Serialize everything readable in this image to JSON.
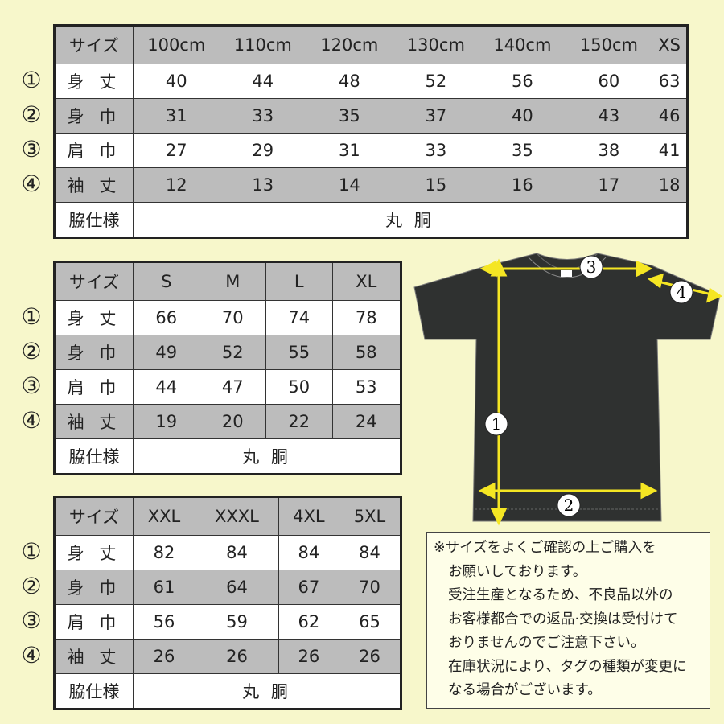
{
  "tables": [
    {
      "header": [
        "サイズ",
        "100cm",
        "110cm",
        "120cm",
        "130cm",
        "140cm",
        "150cm",
        "XS"
      ],
      "rows": [
        {
          "marker": "①",
          "label": "身 丈",
          "values": [
            "40",
            "44",
            "48",
            "52",
            "56",
            "60",
            "63"
          ]
        },
        {
          "marker": "②",
          "label": "身 巾",
          "values": [
            "31",
            "33",
            "35",
            "37",
            "40",
            "43",
            "46"
          ]
        },
        {
          "marker": "③",
          "label": "肩 巾",
          "values": [
            "27",
            "29",
            "31",
            "33",
            "35",
            "38",
            "41"
          ]
        },
        {
          "marker": "④",
          "label": "袖 丈",
          "values": [
            "12",
            "13",
            "14",
            "15",
            "16",
            "17",
            "18"
          ]
        }
      ],
      "side": {
        "label": "脇仕様",
        "value": "丸 胴"
      }
    },
    {
      "header": [
        "サイズ",
        "S",
        "M",
        "L",
        "XL"
      ],
      "rows": [
        {
          "marker": "①",
          "label": "身 丈",
          "values": [
            "66",
            "70",
            "74",
            "78"
          ]
        },
        {
          "marker": "②",
          "label": "身 巾",
          "values": [
            "49",
            "52",
            "55",
            "58"
          ]
        },
        {
          "marker": "③",
          "label": "肩 巾",
          "values": [
            "44",
            "47",
            "50",
            "53"
          ]
        },
        {
          "marker": "④",
          "label": "袖 丈",
          "values": [
            "19",
            "20",
            "22",
            "24"
          ]
        }
      ],
      "side": {
        "label": "脇仕様",
        "value": "丸 胴"
      }
    },
    {
      "header": [
        "サイズ",
        "XXL",
        "XXXL",
        "4XL",
        "5XL"
      ],
      "rows": [
        {
          "marker": "①",
          "label": "身 丈",
          "values": [
            "82",
            "84",
            "84",
            "84"
          ]
        },
        {
          "marker": "②",
          "label": "身 巾",
          "values": [
            "61",
            "64",
            "67",
            "70"
          ]
        },
        {
          "marker": "③",
          "label": "肩 巾",
          "values": [
            "56",
            "59",
            "62",
            "65"
          ]
        },
        {
          "marker": "④",
          "label": "袖 丈",
          "values": [
            "26",
            "26",
            "26",
            "26"
          ]
        }
      ],
      "side": {
        "label": "脇仕様",
        "value": "丸 胴"
      }
    }
  ],
  "diagram": {
    "markers": [
      "1",
      "2",
      "3",
      "4"
    ],
    "shirt_color": "#2f3130",
    "arrow_color": "#f5e623"
  },
  "note": {
    "lines": [
      "※サイズをよくご確認の上ご購入を",
      "お願いしております。",
      "受注生産となるため、不良品以外の",
      "お客様都合での返品·交換は受付けて",
      "おりませんのでご注意下さい。",
      "在庫状況により、タグの種類が変更に",
      "なる場合がございます。"
    ]
  }
}
